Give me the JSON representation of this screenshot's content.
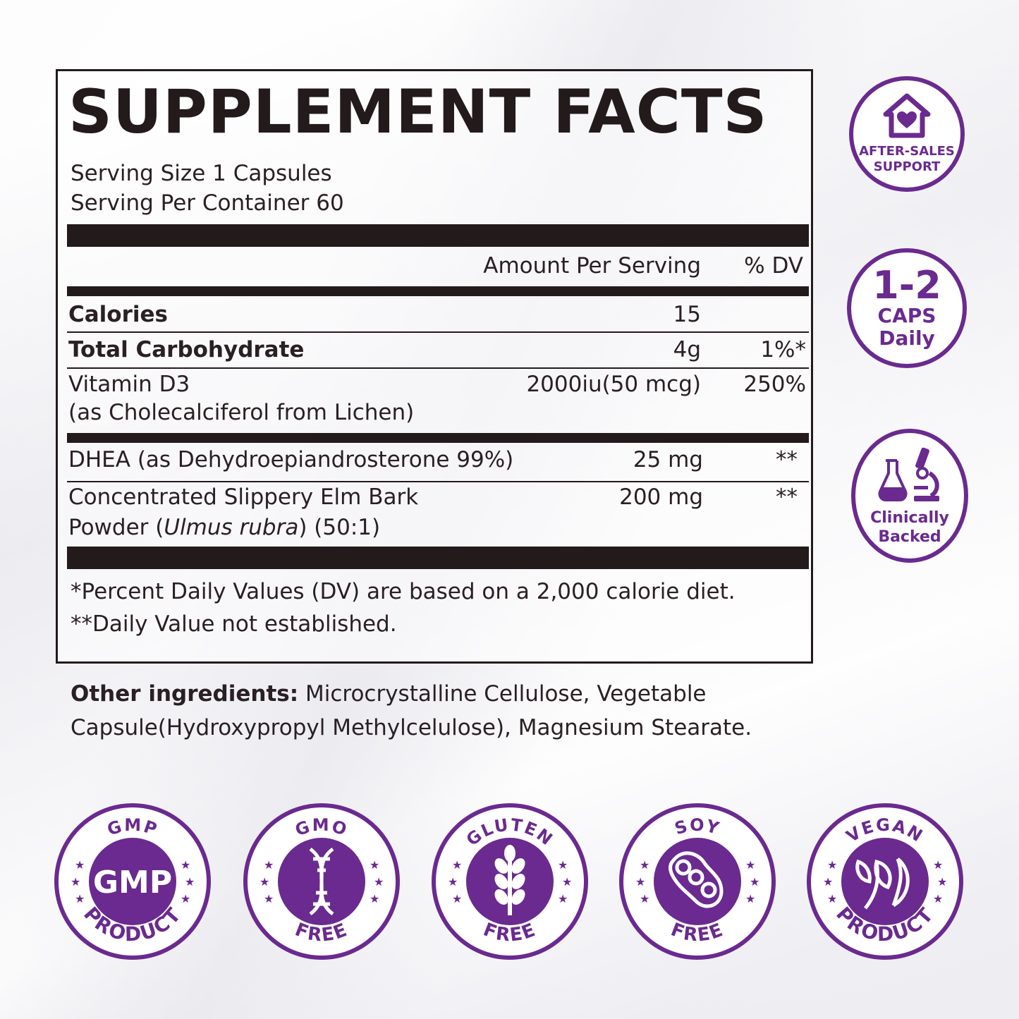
{
  "facts": {
    "title": "SUPPLEMENT FACTS",
    "serving_size": "Serving Size 1 Capsules",
    "serving_per_container": "Serving Per Container 60",
    "header_amount": "Amount Per Serving",
    "header_dv": "% DV",
    "rows": [
      {
        "name": "Calories",
        "amount": "15",
        "dv": ""
      },
      {
        "name": "Total Carbohydrate",
        "amount": "4g",
        "dv": "1%*"
      },
      {
        "name": "Vitamin D3",
        "sub": "(as Cholecalciferol from Lichen)",
        "amount": "2000iu(50 mcg)",
        "dv": "250%"
      },
      {
        "name": "DHEA (as Dehydroepiandrosterone 99%)",
        "amount": "25 mg",
        "dv": "**"
      },
      {
        "name": "Concentrated Slippery Elm Bark",
        "sub_pre": "Powder (",
        "sub_italic": "Ulmus rubra",
        "sub_post": ") (50:1)",
        "amount": "200 mg",
        "dv": "**"
      }
    ],
    "footnote_1": "*Percent Daily Values (DV) are based on a 2,000 calorie diet.",
    "footnote_2": "**Daily Value not established."
  },
  "other": {
    "label": "Other ingredients:",
    "text": " Microcrystalline Cellulose, Vegetable Capsule(Hydroxypropyl Methylcelulose), Magnesium Stearate."
  },
  "side_badges": {
    "after_sales_line1": "AFTER-SALES",
    "after_sales_line2": "SUPPORT",
    "caps_big": "1-2",
    "caps_line1": "CAPS",
    "caps_line2": "Daily",
    "clinic_line1": "Clinically",
    "clinic_line2": "Backed"
  },
  "certs": [
    {
      "top": "GMP",
      "bottom": "PRODUCT",
      "center": "GMP",
      "icon": "gmp-text"
    },
    {
      "top": "GMO",
      "bottom": "FREE",
      "icon": "dna-icon"
    },
    {
      "top": "GLUTEN",
      "bottom": "FREE",
      "icon": "wheat-icon"
    },
    {
      "top": "SOY",
      "bottom": "FREE",
      "icon": "soybean-icon"
    },
    {
      "top": "VEGAN",
      "bottom": "PRODUCT",
      "icon": "leaf-icon"
    }
  ],
  "colors": {
    "accent": "#6a2a8f",
    "ink": "#231a1c"
  }
}
